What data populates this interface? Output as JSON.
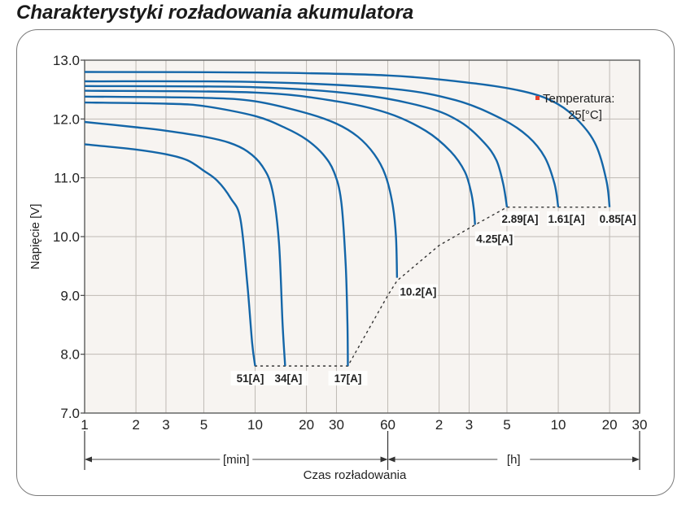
{
  "title": "Charakterystyki rozładowania akumulatora",
  "chart_data": {
    "type": "line",
    "title": "Charakterystyki rozładowania akumulatora",
    "xlabel": "Czas rozładowania",
    "ylabel": "Napięcie [V]",
    "x_scale": "log",
    "x_unit_segments": [
      "[min]",
      "[h]"
    ],
    "x_ticks_min": [
      1,
      2,
      3,
      5,
      10,
      20,
      30,
      60
    ],
    "x_ticks_h": [
      2,
      3,
      5,
      10,
      20,
      30
    ],
    "y_ticks": [
      "13.0",
      "12.0",
      "11.0",
      "10.0",
      "9.0",
      "8.0",
      "7.0"
    ],
    "ylim": [
      7.0,
      13.0
    ],
    "grid": true,
    "annotation": "Temperatura: 25[°C]",
    "annotation_color": "#e8412b",
    "curve_color": "#1466a8",
    "series": [
      {
        "name": "51[A]",
        "end_min": 10,
        "end_v": 7.8,
        "points": [
          [
            1,
            11.57
          ],
          [
            2,
            11.48
          ],
          [
            3,
            11.4
          ],
          [
            4,
            11.3
          ],
          [
            5,
            11.12
          ],
          [
            6,
            10.95
          ],
          [
            7.2,
            10.65
          ],
          [
            8.2,
            10.3
          ],
          [
            9,
            9.2
          ],
          [
            9.6,
            8.2
          ],
          [
            10,
            7.8
          ]
        ]
      },
      {
        "name": "34[A]",
        "end_min": 15,
        "end_v": 7.8,
        "points": [
          [
            1,
            11.95
          ],
          [
            2,
            11.86
          ],
          [
            3,
            11.8
          ],
          [
            5,
            11.7
          ],
          [
            7,
            11.6
          ],
          [
            9,
            11.45
          ],
          [
            11,
            11.2
          ],
          [
            12.6,
            10.8
          ],
          [
            13.8,
            9.9
          ],
          [
            14.5,
            8.5
          ],
          [
            15,
            7.8
          ]
        ]
      },
      {
        "name": "17[A]",
        "end_min": 35,
        "end_v": 7.8,
        "points": [
          [
            1,
            12.28
          ],
          [
            3,
            12.26
          ],
          [
            5,
            12.22
          ],
          [
            10,
            12.05
          ],
          [
            15,
            11.85
          ],
          [
            20,
            11.65
          ],
          [
            25,
            11.4
          ],
          [
            29,
            11.1
          ],
          [
            32,
            10.6
          ],
          [
            34,
            9.5
          ],
          [
            34.8,
            8.5
          ],
          [
            35,
            7.8
          ]
        ]
      },
      {
        "name": "10.2[A]",
        "end_min": 68,
        "end_v": 9.3,
        "points": [
          [
            1,
            12.38
          ],
          [
            5,
            12.36
          ],
          [
            10,
            12.3
          ],
          [
            20,
            12.1
          ],
          [
            30,
            11.92
          ],
          [
            40,
            11.7
          ],
          [
            50,
            11.4
          ],
          [
            58,
            11.05
          ],
          [
            64,
            10.55
          ],
          [
            67,
            10.0
          ],
          [
            68,
            9.3
          ]
        ]
      },
      {
        "name": "4.25[A]",
        "end_min": 195,
        "end_v": 10.2,
        "points": [
          [
            1,
            12.48
          ],
          [
            10,
            12.45
          ],
          [
            30,
            12.3
          ],
          [
            60,
            12.1
          ],
          [
            100,
            11.8
          ],
          [
            140,
            11.45
          ],
          [
            170,
            11.1
          ],
          [
            185,
            10.75
          ],
          [
            192,
            10.45
          ],
          [
            195,
            10.2
          ]
        ]
      },
      {
        "name": "2.89[A]",
        "end_min": 300,
        "end_v": 10.5,
        "points": [
          [
            1,
            12.56
          ],
          [
            10,
            12.54
          ],
          [
            40,
            12.42
          ],
          [
            100,
            12.2
          ],
          [
            160,
            11.95
          ],
          [
            220,
            11.6
          ],
          [
            260,
            11.3
          ],
          [
            285,
            10.9
          ],
          [
            300,
            10.5
          ]
        ]
      },
      {
        "name": "1.61[A]",
        "end_min": 600,
        "end_v": 10.5,
        "points": [
          [
            1,
            12.64
          ],
          [
            10,
            12.63
          ],
          [
            60,
            12.52
          ],
          [
            150,
            12.32
          ],
          [
            280,
            12.0
          ],
          [
            400,
            11.7
          ],
          [
            500,
            11.35
          ],
          [
            570,
            10.9
          ],
          [
            600,
            10.5
          ]
        ]
      },
      {
        "name": "0.85[A]",
        "end_min": 1200,
        "end_v": 10.5,
        "points": [
          [
            1,
            12.8
          ],
          [
            10,
            12.79
          ],
          [
            60,
            12.74
          ],
          [
            200,
            12.6
          ],
          [
            400,
            12.45
          ],
          [
            600,
            12.25
          ],
          [
            800,
            11.95
          ],
          [
            1000,
            11.55
          ],
          [
            1150,
            10.95
          ],
          [
            1200,
            10.5
          ]
        ]
      }
    ],
    "cutoff_line": [
      [
        10,
        7.8
      ],
      [
        35,
        7.8
      ],
      [
        60,
        9.0
      ],
      [
        68,
        9.25
      ],
      [
        120,
        9.85
      ],
      [
        195,
        10.2
      ],
      [
        300,
        10.5
      ],
      [
        1200,
        10.5
      ]
    ]
  }
}
